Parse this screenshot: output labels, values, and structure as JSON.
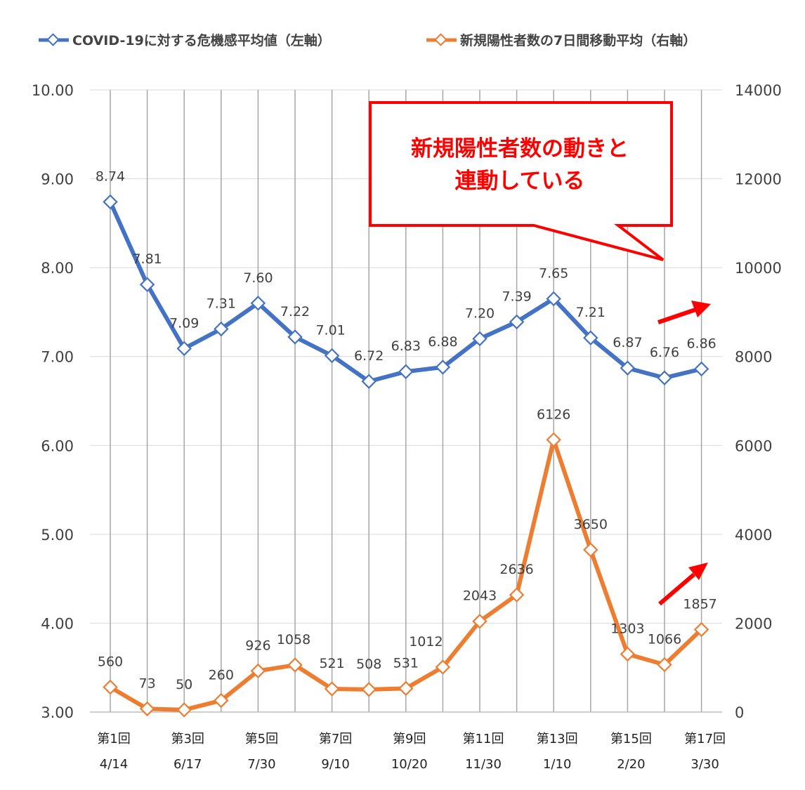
{
  "chart_data": {
    "type": "line",
    "legend_position": "top",
    "grid": "vertical",
    "x_labels": [
      {
        "round": "第1回",
        "date": "4/14"
      },
      {
        "round": "",
        "date": ""
      },
      {
        "round": "第3回",
        "date": "6/17"
      },
      {
        "round": "",
        "date": ""
      },
      {
        "round": "第5回",
        "date": "7/30"
      },
      {
        "round": "",
        "date": ""
      },
      {
        "round": "第7回",
        "date": "9/10"
      },
      {
        "round": "",
        "date": ""
      },
      {
        "round": "第9回",
        "date": "10/20"
      },
      {
        "round": "",
        "date": ""
      },
      {
        "round": "第11回",
        "date": "11/30"
      },
      {
        "round": "",
        "date": ""
      },
      {
        "round": "第13回",
        "date": "1/10"
      },
      {
        "round": "",
        "date": ""
      },
      {
        "round": "第15回",
        "date": "2/20"
      },
      {
        "round": "",
        "date": ""
      },
      {
        "round": "第17回",
        "date": "3/30"
      }
    ],
    "y_left": {
      "range": [
        3.0,
        10.0
      ],
      "ticks": [
        "3.00",
        "4.00",
        "5.00",
        "6.00",
        "7.00",
        "8.00",
        "9.00",
        "10.00"
      ]
    },
    "y_right": {
      "range": [
        0,
        14000
      ],
      "ticks": [
        "0",
        "2000",
        "4000",
        "6000",
        "8000",
        "10000",
        "12000",
        "14000"
      ]
    },
    "series": [
      {
        "name": "COVID-19に対する危機感平均値（左軸）",
        "axis": "left",
        "color": "#4472c4",
        "values": [
          8.74,
          7.81,
          7.09,
          7.31,
          7.6,
          7.22,
          7.01,
          6.72,
          6.83,
          6.88,
          7.2,
          7.39,
          7.65,
          7.21,
          6.87,
          6.76,
          6.86
        ],
        "labels": [
          "8.74",
          "7.81",
          "7.09",
          "7.31",
          "7.60",
          "7.22",
          "7.01",
          "6.72",
          "6.83",
          "6.88",
          "7.20",
          "7.39",
          "7.65",
          "7.21",
          "6.87",
          "6.76",
          "6.86"
        ]
      },
      {
        "name": "新規陽性者数の7日間移動平均（右軸）",
        "axis": "right",
        "color": "#ed7d31",
        "values": [
          560,
          73,
          50,
          260,
          926,
          1058,
          521,
          508,
          531,
          1012,
          2043,
          2636,
          6126,
          3650,
          1303,
          1066,
          1857
        ],
        "labels": [
          "560",
          "73",
          "50",
          "260",
          "926",
          "1058",
          "521",
          "508",
          "531",
          "1012",
          "2043",
          "2636",
          "6126",
          "3650",
          "1303",
          "1066",
          "1857"
        ]
      }
    ],
    "annotation": {
      "lines": [
        "新規陽性者数の動きと",
        "連動している"
      ],
      "color": "#ff0000"
    },
    "arrows_color": "#ff0000"
  }
}
